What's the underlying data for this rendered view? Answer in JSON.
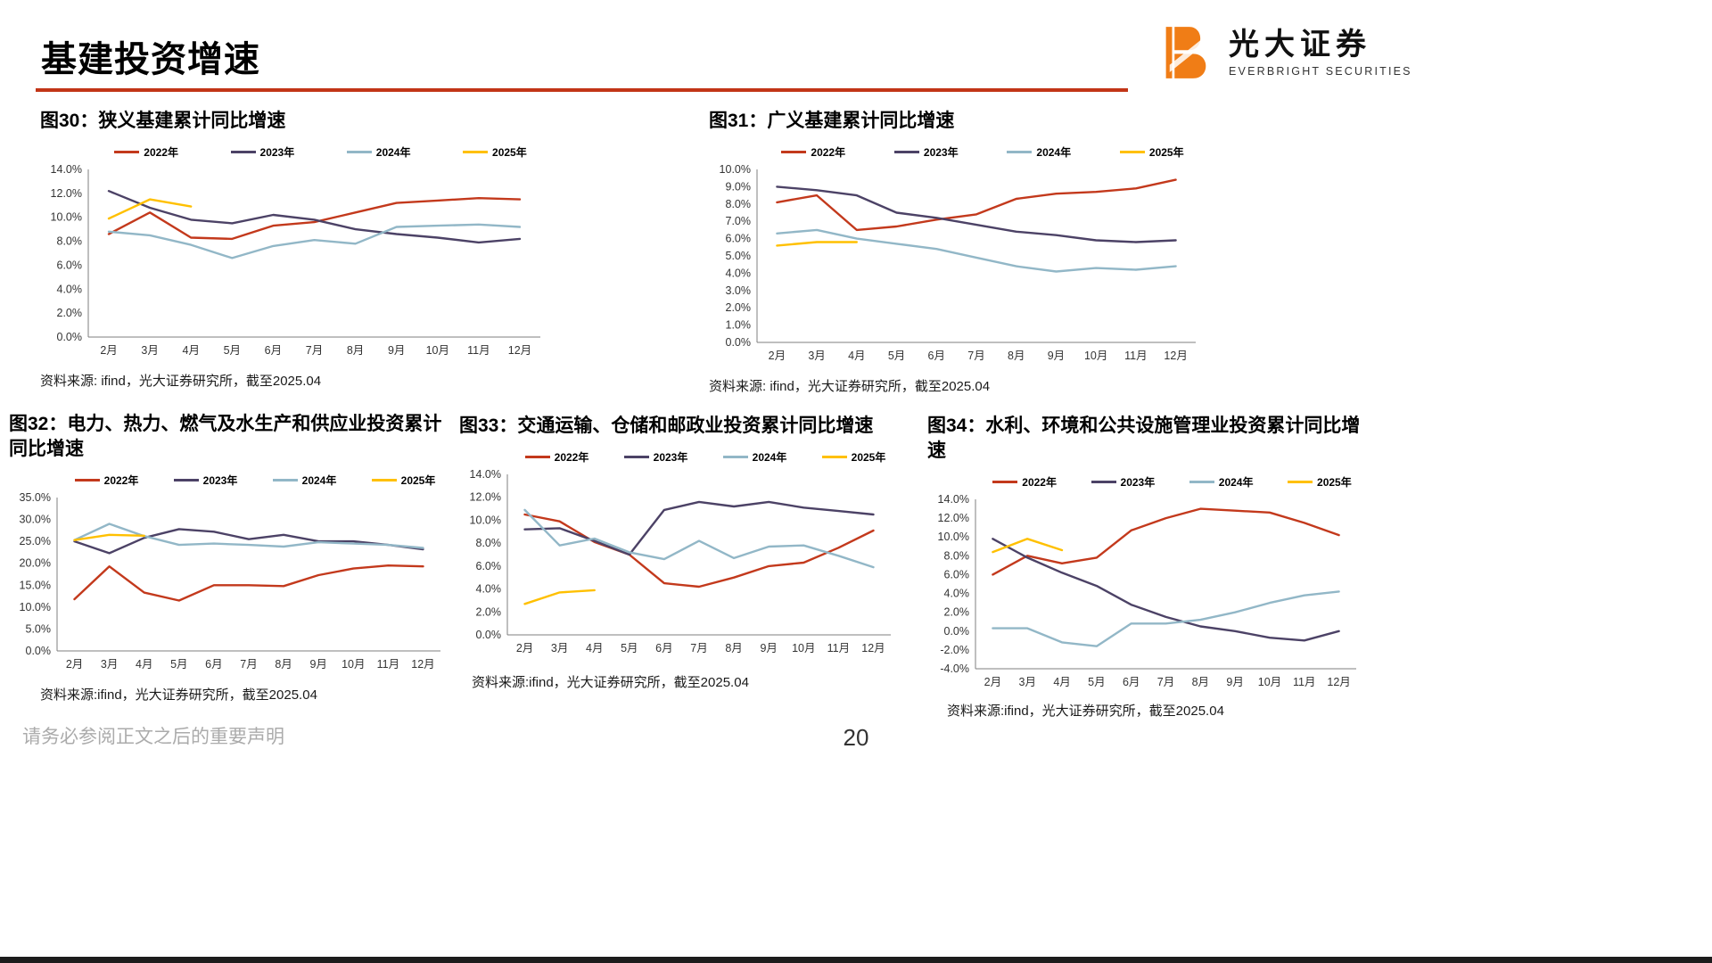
{
  "header": {
    "title": "基建投资增速"
  },
  "logo": {
    "name_cn": "光大证券",
    "name_en": "EVERBRIGHT SECURITIES"
  },
  "footer": {
    "note": "请务必参阅正文之后的重要声明",
    "page_number": "20"
  },
  "colors": {
    "accent_rule": "#C23517",
    "logo_orange": "#F07D16",
    "series_2022": "#C3391C",
    "series_2023": "#4C4266",
    "series_2024": "#92B7C7",
    "series_2025": "#FFC000"
  },
  "chart_data": [
    {
      "id": "fig30",
      "type": "line",
      "title": "图30：狭义基建累计同比增速",
      "source": "资料来源: ifind，光大证券研究所，截至2025.04",
      "legend_position": "top",
      "grid": false,
      "categories": [
        "2月",
        "3月",
        "4月",
        "5月",
        "6月",
        "7月",
        "8月",
        "9月",
        "10月",
        "11月",
        "12月"
      ],
      "ylim": [
        0,
        14
      ],
      "ytick_step": 2,
      "series": [
        {
          "name": "2022年",
          "color": "#C3391C",
          "values": [
            8.6,
            10.4,
            8.3,
            8.2,
            9.3,
            9.6,
            10.4,
            11.2,
            11.4,
            11.6,
            11.5
          ]
        },
        {
          "name": "2023年",
          "color": "#4C4266",
          "values": [
            12.2,
            10.8,
            9.8,
            9.5,
            10.2,
            9.8,
            9.0,
            8.6,
            8.3,
            7.9,
            8.2
          ]
        },
        {
          "name": "2024年",
          "color": "#92B7C7",
          "values": [
            8.8,
            8.5,
            7.7,
            6.6,
            7.6,
            8.1,
            7.8,
            9.2,
            9.3,
            9.4,
            9.2
          ]
        },
        {
          "name": "2025年",
          "color": "#FFC000",
          "values": [
            9.9,
            11.5,
            10.9,
            null,
            null,
            null,
            null,
            null,
            null,
            null,
            null
          ]
        }
      ]
    },
    {
      "id": "fig31",
      "type": "line",
      "title": "图31：广义基建累计同比增速",
      "source": "资料来源: ifind，光大证券研究所，截至2025.04",
      "legend_position": "top",
      "grid": false,
      "categories": [
        "2月",
        "3月",
        "4月",
        "5月",
        "6月",
        "7月",
        "8月",
        "9月",
        "10月",
        "11月",
        "12月"
      ],
      "ylim": [
        0,
        10
      ],
      "ytick_step": 1,
      "series": [
        {
          "name": "2022年",
          "color": "#C3391C",
          "values": [
            8.1,
            8.5,
            6.5,
            6.7,
            7.1,
            7.4,
            8.3,
            8.6,
            8.7,
            8.9,
            9.4
          ]
        },
        {
          "name": "2023年",
          "color": "#4C4266",
          "values": [
            9.0,
            8.8,
            8.5,
            7.5,
            7.2,
            6.8,
            6.4,
            6.2,
            5.9,
            5.8,
            5.9
          ]
        },
        {
          "name": "2024年",
          "color": "#92B7C7",
          "values": [
            6.3,
            6.5,
            6.0,
            5.7,
            5.4,
            4.9,
            4.4,
            4.1,
            4.3,
            4.2,
            4.4
          ]
        },
        {
          "name": "2025年",
          "color": "#FFC000",
          "values": [
            5.6,
            5.8,
            5.8,
            null,
            null,
            null,
            null,
            null,
            null,
            null,
            null
          ]
        }
      ]
    },
    {
      "id": "fig32",
      "type": "line",
      "title": "图32：电力、热力、燃气及水生产和供应业投资累计同比增速",
      "source": "资料来源:ifind，光大证券研究所，截至2025.04",
      "legend_position": "top",
      "grid": false,
      "categories": [
        "2月",
        "3月",
        "4月",
        "5月",
        "6月",
        "7月",
        "8月",
        "9月",
        "10月",
        "11月",
        "12月"
      ],
      "ylim": [
        0,
        35
      ],
      "ytick_step": 5,
      "series": [
        {
          "name": "2022年",
          "color": "#C3391C",
          "values": [
            11.8,
            19.3,
            13.3,
            11.5,
            15.0,
            15.0,
            14.8,
            17.3,
            18.8,
            19.5,
            19.3
          ]
        },
        {
          "name": "2023年",
          "color": "#4C4266",
          "values": [
            25.0,
            22.3,
            25.8,
            27.8,
            27.2,
            25.5,
            26.5,
            25.0,
            25.0,
            24.2,
            23.2
          ]
        },
        {
          "name": "2024年",
          "color": "#92B7C7",
          "values": [
            25.3,
            29.0,
            26.2,
            24.2,
            24.5,
            24.2,
            23.8,
            24.8,
            24.5,
            24.2,
            23.5
          ]
        },
        {
          "name": "2025年",
          "color": "#FFC000",
          "values": [
            25.3,
            26.5,
            26.3,
            null,
            null,
            null,
            null,
            null,
            null,
            null,
            null
          ]
        }
      ]
    },
    {
      "id": "fig33",
      "type": "line",
      "title": "图33：交通运输、仓储和邮政业投资累计同比增速",
      "source": "资料来源:ifind，光大证券研究所，截至2025.04",
      "legend_position": "top",
      "grid": false,
      "categories": [
        "2月",
        "3月",
        "4月",
        "5月",
        "6月",
        "7月",
        "8月",
        "9月",
        "10月",
        "11月",
        "12月"
      ],
      "ylim": [
        0,
        14
      ],
      "ytick_step": 2,
      "series": [
        {
          "name": "2022年",
          "color": "#C3391C",
          "values": [
            10.5,
            9.9,
            8.1,
            7.0,
            4.5,
            4.2,
            5.0,
            6.0,
            6.3,
            7.6,
            9.1
          ]
        },
        {
          "name": "2023年",
          "color": "#4C4266",
          "values": [
            9.2,
            9.3,
            8.2,
            7.0,
            10.9,
            11.6,
            11.2,
            11.6,
            11.1,
            10.8,
            10.5
          ]
        },
        {
          "name": "2024年",
          "color": "#92B7C7",
          "values": [
            10.9,
            7.8,
            8.4,
            7.2,
            6.6,
            8.2,
            6.7,
            7.7,
            7.8,
            6.9,
            5.9
          ]
        },
        {
          "name": "2025年",
          "color": "#FFC000",
          "values": [
            2.7,
            3.7,
            3.9,
            null,
            null,
            null,
            null,
            null,
            null,
            null,
            null
          ]
        }
      ]
    },
    {
      "id": "fig34",
      "type": "line",
      "title": "图34：水利、环境和公共设施管理业投资累计同比增速",
      "source": "资料来源:ifind，光大证券研究所，截至2025.04",
      "legend_position": "top",
      "grid": false,
      "categories": [
        "2月",
        "3月",
        "4月",
        "5月",
        "6月",
        "7月",
        "8月",
        "9月",
        "10月",
        "11月",
        "12月"
      ],
      "ylim": [
        -4,
        14
      ],
      "ytick_step": 2,
      "series": [
        {
          "name": "2022年",
          "color": "#C3391C",
          "values": [
            6.0,
            8.0,
            7.2,
            7.8,
            10.7,
            12.0,
            13.0,
            12.8,
            12.6,
            11.5,
            10.2
          ]
        },
        {
          "name": "2023年",
          "color": "#4C4266",
          "values": [
            9.8,
            7.8,
            6.2,
            4.8,
            2.8,
            1.5,
            0.5,
            0.0,
            -0.7,
            -1.0,
            0.0
          ]
        },
        {
          "name": "2024年",
          "color": "#92B7C7",
          "values": [
            0.3,
            0.3,
            -1.2,
            -1.6,
            0.8,
            0.8,
            1.2,
            2.0,
            3.0,
            3.8,
            4.2
          ]
        },
        {
          "name": "2025年",
          "color": "#FFC000",
          "values": [
            8.4,
            9.8,
            8.6,
            null,
            null,
            null,
            null,
            null,
            null,
            null,
            null
          ]
        }
      ]
    }
  ]
}
